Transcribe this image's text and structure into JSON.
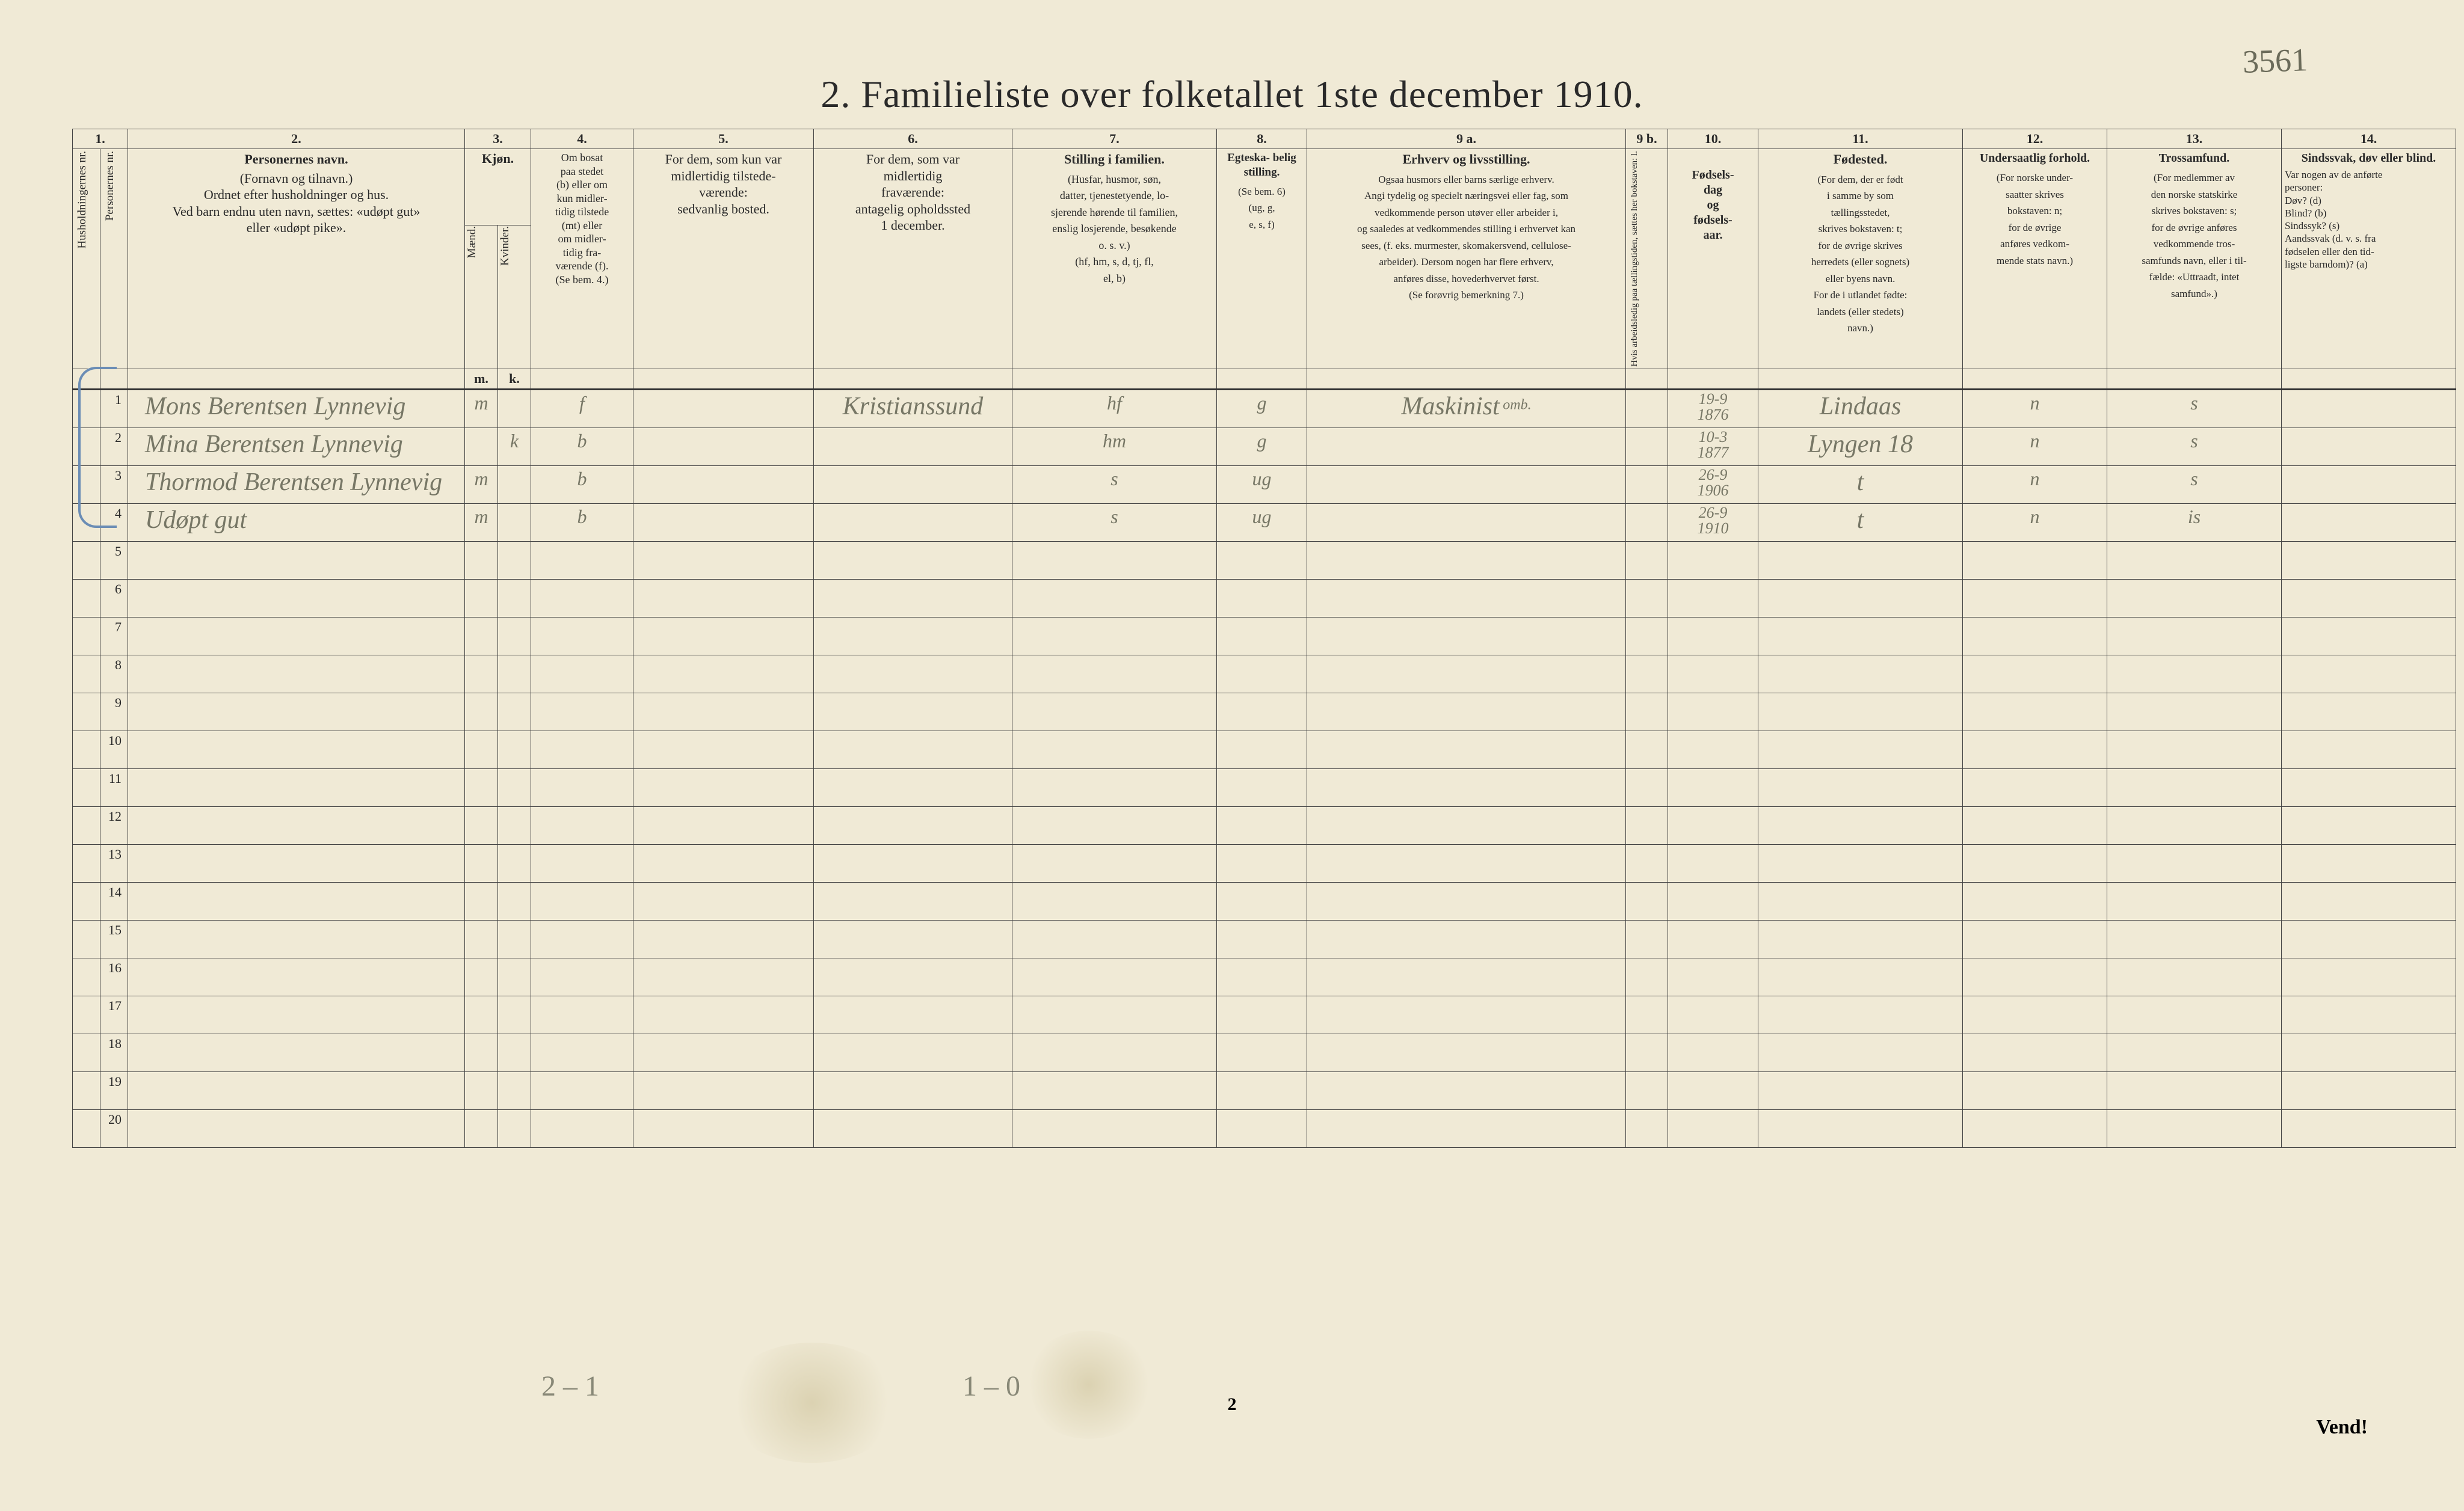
{
  "handwritten_top_right": "3561",
  "title": "2.  Familieliste over folketallet 1ste december 1910.",
  "column_numbers": [
    "1.",
    "2.",
    "3.",
    "4.",
    "5.",
    "6.",
    "7.",
    "8.",
    "9 a.",
    "9 b.",
    "10.",
    "11.",
    "12.",
    "13.",
    "14."
  ],
  "headers": {
    "c1a": "Husholdningernes nr.",
    "c1b": "Personernes nr.",
    "c2_heading": "Personernes navn.",
    "c2_sub": "(Fornavn og tilnavn.)\nOrdnet efter husholdninger og hus.\nVed barn endnu uten navn, sættes: «udøpt gut»\neller «udøpt pike».",
    "c3_heading": "Kjøn.",
    "c3a": "Mænd.",
    "c3b": "Kvinder.",
    "c3_mk_m": "m.",
    "c3_mk_k": "k.",
    "c4": "Om bosat\npaa stedet\n(b) eller om\nkun midler-\ntidig tilstede\n(mt) eller\nom midler-\ntidig fra-\nværende (f).\n(Se bem. 4.)",
    "c5": "For dem, som kun var\nmidlertidig tilstede-\nværende:\nsedvanlig bosted.",
    "c6": "For dem, som var\nmidlertidig\nfraværende:\nantagelig opholdssted\n1 december.",
    "c7_heading": "Stilling i familien.",
    "c7_sub": "(Husfar, husmor, søn,\ndatter, tjenestetyende, lo-\nsjerende hørende til familien,\nenslig losjerende, besøkende\no. s. v.)\n(hf, hm, s, d, tj, fl,\nel, b)",
    "c8_heading": "Egteska-\nbelig\nstilling.",
    "c8_sub": "(Se bem. 6)\n(ug, g,\ne, s, f)",
    "c9a_heading": "Erhverv og livsstilling.",
    "c9a_sub": "Ogsaa husmors eller barns særlige erhverv.\nAngi tydelig og specielt næringsvei eller fag, som\nvedkommende person utøver eller arbeider i,\nog saaledes at vedkommendes stilling i erhvervet kan\nsees, (f. eks. murmester, skomakersvend, cellulose-\narbeider). Dersom nogen har flere erhverv,\nanføres disse, hovederhvervet først.\n(Se forøvrig bemerkning 7.)",
    "c9b": "Hvis arbeidsledig\npaa tællingstiden, sættes\nher bokstaven: l.",
    "c10_heading": "Fødsels-\ndag\nog\nfødsels-\naar.",
    "c11_heading": "Fødested.",
    "c11_sub": "(For dem, der er født\ni samme by som\ntællingsstedet,\nskrives bokstaven: t;\nfor de øvrige skrives\nherredets (eller sognets)\neller byens navn.\nFor de i utlandet fødte:\nlandets (eller stedets)\nnavn.)",
    "c12_heading": "Undersaatlig\nforhold.",
    "c12_sub": "(For norske under-\nsaatter skrives\nbokstaven: n;\nfor de øvrige\nanføres vedkom-\nmende stats navn.)",
    "c13_heading": "Trossamfund.",
    "c13_sub": "(For medlemmer av\nden norske statskirke\nskrives bokstaven: s;\nfor de øvrige anføres\nvedkommende tros-\nsamfunds navn, eller i til-\nfælde: «Uttraadt, intet\nsamfund».)",
    "c14_heading": "Sindssvak, døv\neller blind.",
    "c14_sub": "Var nogen av de anførte\npersoner:\nDøv?      (d)\nBlind?    (b)\nSindssyk? (s)\nAandssvak (d. v. s. fra\nfødselen eller den tid-\nligste barndom)? (a)"
  },
  "rows": [
    {
      "num": "1",
      "name": "Mons Berentsen Lynnevig",
      "m": "m",
      "k": "",
      "b": "f",
      "c5": "",
      "c6": "Kristianssund",
      "c7": "hf",
      "c8": "g",
      "c9a": "Maskinist",
      "c9a_sup": "omb.",
      "c10": "19-9\n1876",
      "c11": "Lindaas",
      "c12": "n",
      "c13": "s",
      "c14": ""
    },
    {
      "num": "2",
      "name": "Mina Berentsen Lynnevig",
      "m": "",
      "k": "k",
      "b": "b",
      "c5": "",
      "c6": "",
      "c7": "hm",
      "c8": "g",
      "c9a": "",
      "c10": "10-3\n1877",
      "c11": "Lyngen 18",
      "c12": "n",
      "c13": "s",
      "c14": ""
    },
    {
      "num": "3",
      "name": "Thormod Berentsen Lynnevig",
      "m": "m",
      "k": "",
      "b": "b",
      "c5": "",
      "c6": "",
      "c7": "s",
      "c8": "ug",
      "c9a": "",
      "c10": "26-9\n1906",
      "c11": "t",
      "c12": "n",
      "c13": "s",
      "c14": ""
    },
    {
      "num": "4",
      "name": "Udøpt gut",
      "m": "m",
      "k": "",
      "b": "b",
      "c5": "",
      "c6": "",
      "c7": "s",
      "c8": "ug",
      "c9a": "",
      "c10": "26-9\n1910",
      "c11": "t",
      "c12": "n",
      "c13": "is",
      "c14": ""
    }
  ],
  "empty_rows": [
    "5",
    "6",
    "7",
    "8",
    "9",
    "10",
    "11",
    "12",
    "13",
    "14",
    "15",
    "16",
    "17",
    "18",
    "19",
    "20"
  ],
  "footer": {
    "hand_left": "2 – 1",
    "hand_right": "1 – 0",
    "page_number": "2",
    "vend": "Vend!"
  },
  "colors": {
    "paper": "#f0ead6",
    "ink": "#2a2a2a",
    "pencil": "#777766",
    "blue_pencil": "#6b8db5",
    "background": "#1a1a1a"
  }
}
